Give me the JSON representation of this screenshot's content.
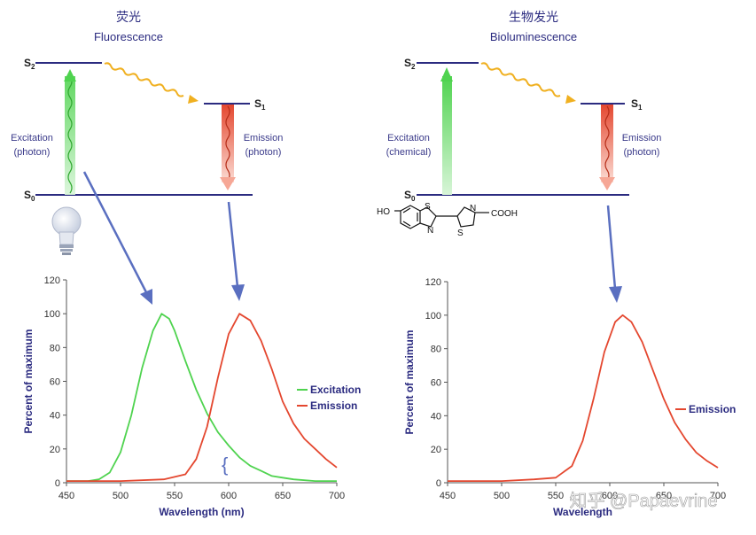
{
  "left_panel": {
    "title_cn": "荧光",
    "title_en": "Fluorescence",
    "levels": {
      "s2": "S",
      "s2_sub": "2",
      "s1": "S",
      "s1_sub": "1",
      "s0": "S",
      "s0_sub": "0"
    },
    "excitation_label": [
      "Excitation",
      "(photon)"
    ],
    "emission_label": [
      "Emission",
      "(photon)"
    ]
  },
  "right_panel": {
    "title_cn": "生物发光",
    "title_en": "Bioluminescence",
    "levels": {
      "s2": "S",
      "s2_sub": "2",
      "s1": "S",
      "s1_sub": "1",
      "s0": "S",
      "s0_sub": "0"
    },
    "excitation_label": [
      "Excitation",
      "(chemical)"
    ],
    "emission_label": [
      "Emission",
      "(photon)"
    ],
    "molecule": {
      "ho": "HO",
      "s_left": "S",
      "n_left": "N",
      "n_right": "N",
      "s_right": "S",
      "cooh": "COOH"
    }
  },
  "colors": {
    "excitation": "#4fd34f",
    "emission": "#e4472f",
    "level_line": "#2b2b80",
    "arrow": "#5a6fc0",
    "squiggle": "#f0b020"
  },
  "watermark": "知乎 @Papaevrine",
  "chart_data": [
    {
      "type": "line",
      "xlabel": "Wavelength (nm)",
      "ylabel": "Percent of maximum",
      "xlim": [
        450,
        700
      ],
      "ylim": [
        0,
        120
      ],
      "x_ticks": [
        "450",
        "500",
        "550",
        "600",
        "650",
        "700"
      ],
      "y_ticks": [
        "0",
        "20",
        "40",
        "60",
        "80",
        "100",
        "120"
      ],
      "legend_position": "right",
      "series": [
        {
          "name": "Excitation",
          "color": "#4fd34f",
          "x": [
            450,
            470,
            480,
            490,
            500,
            510,
            520,
            530,
            538,
            545,
            550,
            560,
            570,
            580,
            590,
            600,
            610,
            620,
            630,
            640,
            650,
            660,
            680,
            700
          ],
          "y": [
            1,
            1,
            2,
            6,
            18,
            40,
            68,
            90,
            100,
            97,
            90,
            72,
            55,
            41,
            30,
            22,
            15,
            10,
            7,
            4,
            3,
            2,
            1,
            1
          ]
        },
        {
          "name": "Emission",
          "color": "#e4472f",
          "x": [
            450,
            500,
            540,
            560,
            570,
            580,
            590,
            600,
            610,
            620,
            630,
            640,
            650,
            660,
            670,
            680,
            690,
            700
          ],
          "y": [
            1,
            1,
            2,
            5,
            14,
            33,
            62,
            88,
            100,
            96,
            84,
            67,
            48,
            35,
            26,
            20,
            14,
            9
          ]
        }
      ]
    },
    {
      "type": "line",
      "xlabel": "Wavelength",
      "ylabel": "Percent of maximum",
      "xlim": [
        450,
        700
      ],
      "ylim": [
        0,
        120
      ],
      "x_ticks": [
        "450",
        "500",
        "550",
        "600",
        "650",
        "700"
      ],
      "y_ticks": [
        "0",
        "20",
        "40",
        "60",
        "80",
        "100",
        "120"
      ],
      "legend_position": "right",
      "series": [
        {
          "name": "Emission",
          "color": "#e4472f",
          "x": [
            450,
            500,
            530,
            550,
            565,
            575,
            585,
            595,
            605,
            612,
            620,
            630,
            640,
            650,
            660,
            670,
            680,
            690,
            700
          ],
          "y": [
            1,
            1,
            2,
            3,
            10,
            25,
            50,
            78,
            96,
            100,
            96,
            84,
            67,
            50,
            36,
            26,
            18,
            13,
            9
          ]
        }
      ]
    }
  ]
}
